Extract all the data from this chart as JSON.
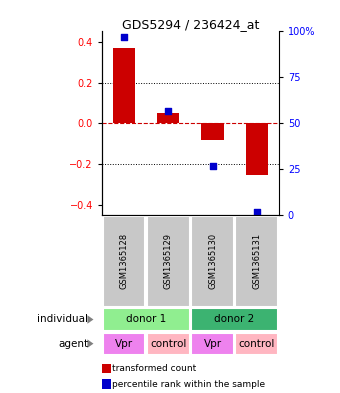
{
  "title": "GDS5294 / 236424_at",
  "samples": [
    "GSM1365128",
    "GSM1365129",
    "GSM1365130",
    "GSM1365131"
  ],
  "red_values": [
    0.37,
    0.05,
    -0.08,
    -0.25
  ],
  "blue_values_pct": [
    97,
    57,
    27,
    2
  ],
  "ylim_left": [
    -0.45,
    0.45
  ],
  "ylim_right": [
    0,
    100
  ],
  "yticks_left": [
    -0.4,
    -0.2,
    0.0,
    0.2,
    0.4
  ],
  "yticks_right": [
    0,
    25,
    50,
    75,
    100
  ],
  "ytick_labels_right": [
    "0",
    "25",
    "50",
    "75",
    "100%"
  ],
  "individual_labels": [
    "donor 1",
    "donor 2"
  ],
  "individual_color_1": "#90EE90",
  "individual_color_2": "#3CB371",
  "agent_labels": [
    "Vpr",
    "control",
    "Vpr",
    "control"
  ],
  "agent_color_vpr": "#EE82EE",
  "agent_color_control": "#FFB6C1",
  "bar_color_red": "#CC0000",
  "bar_color_blue": "#0000CC",
  "sample_box_color": "#C8C8C8",
  "legend_red_label": "transformed count",
  "legend_blue_label": "percentile rank within the sample",
  "zero_line_color": "#CC0000",
  "bar_width": 0.5
}
